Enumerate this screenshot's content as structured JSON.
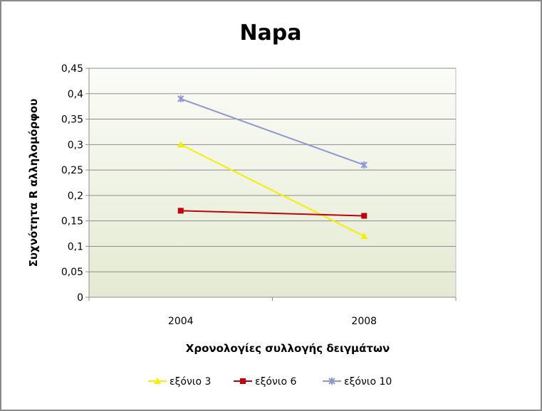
{
  "chart_data": {
    "type": "line",
    "title": "Napa",
    "xlabel": "Χρονολογίες συλλογής δειγμάτων",
    "ylabel": "Συχνότητα R αλληλομόρφου",
    "categories": [
      "2004",
      "2008"
    ],
    "ylim": [
      0,
      0.45
    ],
    "yticks": [
      0,
      0.05,
      0.1,
      0.15,
      0.2,
      0.25,
      0.3,
      0.35,
      0.4,
      0.45
    ],
    "ytick_labels": [
      "0",
      "0,05",
      "0,1",
      "0,15",
      "0,2",
      "0,25",
      "0,3",
      "0,35",
      "0,4",
      "0,45"
    ],
    "grid": true,
    "legend_position": "bottom",
    "series": [
      {
        "name": "εξόνιο 3",
        "values": [
          0.3,
          0.12
        ],
        "color": "#f5f000",
        "marker": "triangle"
      },
      {
        "name": "εξόνιο 6",
        "values": [
          0.17,
          0.16
        ],
        "color": "#c0000a",
        "marker": "square"
      },
      {
        "name": "εξόνιο 10",
        "values": [
          0.39,
          0.26
        ],
        "color": "#8e97d4",
        "marker": "star"
      }
    ]
  }
}
